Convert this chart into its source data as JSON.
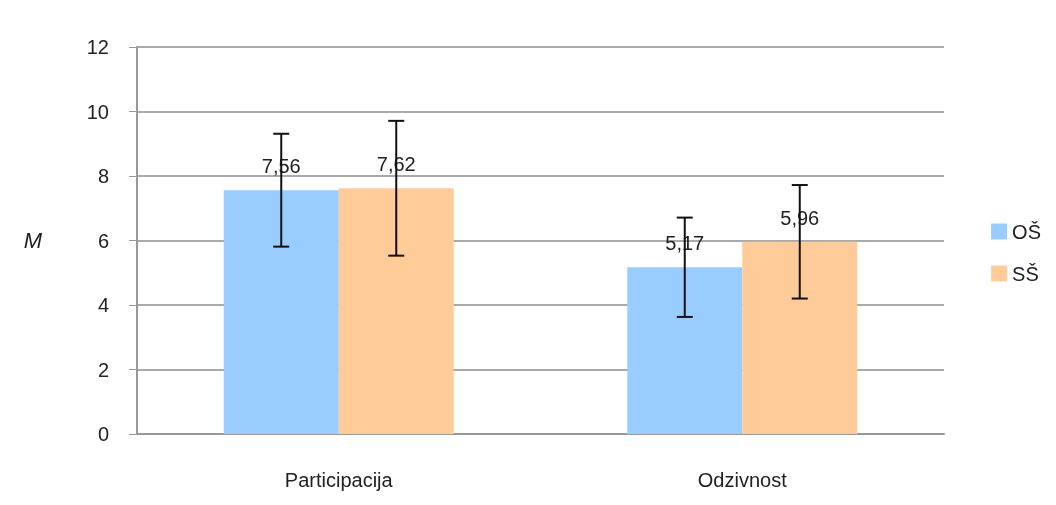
{
  "chart_data": {
    "type": "bar",
    "ylabel": "M",
    "categories": [
      "Participacija",
      "Odzivnost"
    ],
    "series": [
      {
        "name": "OŠ",
        "color": "#99ccff",
        "values": [
          7.56,
          5.17
        ],
        "value_labels": [
          "7,56",
          "5,17"
        ],
        "errors": [
          1.75,
          1.54
        ]
      },
      {
        "name": "SŠ",
        "color": "#ffcc99",
        "values": [
          7.62,
          5.96
        ],
        "value_labels": [
          "7,62",
          "5,96"
        ],
        "errors": [
          2.09,
          1.76
        ]
      }
    ],
    "ylim": [
      0,
      12
    ],
    "yticks": [
      0,
      2,
      4,
      6,
      8,
      10,
      12
    ],
    "grid": "y",
    "legend": "right"
  }
}
